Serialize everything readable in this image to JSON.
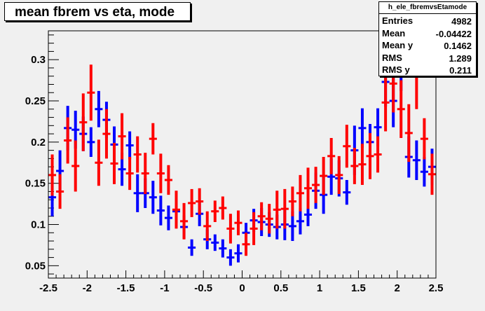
{
  "title": "mean fbrem vs eta, mode",
  "stats": {
    "name": "h_ele_fbremvsEtamode",
    "rows": [
      {
        "label": "Entries",
        "value": "4982"
      },
      {
        "label": "Mean",
        "value": "-0.04422"
      },
      {
        "label": "Mean y",
        "value": "0.1462"
      },
      {
        "label": "RMS",
        "value": "1.289"
      },
      {
        "label": "RMS y",
        "value": "0.211"
      }
    ]
  },
  "colors": {
    "background": "#f0f0f0",
    "frame": "#000000",
    "series_blue": "#0000ff",
    "series_red": "#ff0000"
  },
  "chart_data": {
    "type": "scatter",
    "title": "mean fbrem vs eta, mode",
    "xlabel": "",
    "ylabel": "",
    "xlim": [
      -2.5,
      2.5
    ],
    "ylim": [
      0.035,
      0.335
    ],
    "grid": false,
    "x_ticks": [
      "-2.5",
      "-2",
      "-1.5",
      "-1",
      "-0.5",
      "0",
      "0.5",
      "1",
      "1.5",
      "2",
      "2.5"
    ],
    "y_ticks": [
      "0.05",
      "0.1",
      "0.15",
      "0.2",
      "0.25",
      "0.3"
    ],
    "x_half_width": 0.05,
    "series": [
      {
        "color": "#0000ff",
        "x": [
          -2.45,
          -2.35,
          -2.25,
          -2.15,
          -2.05,
          -1.95,
          -1.85,
          -1.75,
          -1.65,
          -1.55,
          -1.45,
          -1.35,
          -1.25,
          -1.15,
          -1.05,
          -0.95,
          -0.85,
          -0.75,
          -0.65,
          -0.55,
          -0.45,
          -0.35,
          -0.25,
          -0.15,
          -0.05,
          0.05,
          0.15,
          0.25,
          0.35,
          0.45,
          0.55,
          0.65,
          0.75,
          0.85,
          0.95,
          1.05,
          1.15,
          1.25,
          1.35,
          1.45,
          1.55,
          1.65,
          1.75,
          1.85,
          1.95,
          2.05,
          2.15,
          2.25,
          2.35,
          2.45
        ],
        "y": [
          0.133,
          0.165,
          0.217,
          0.215,
          0.21,
          0.2,
          0.24,
          0.227,
          0.197,
          0.167,
          0.196,
          0.138,
          0.138,
          0.133,
          0.117,
          0.108,
          0.116,
          0.097,
          0.072,
          0.113,
          0.082,
          0.078,
          0.071,
          0.06,
          0.065,
          0.09,
          0.105,
          0.103,
          0.1,
          0.097,
          0.1,
          0.098,
          0.104,
          0.112,
          0.141,
          0.136,
          0.158,
          0.156,
          0.139,
          0.19,
          0.217,
          0.2,
          0.218,
          0.273,
          0.25,
          0.292,
          0.182,
          0.178,
          0.164,
          0.17
        ],
        "err": [
          0.023,
          0.025,
          0.027,
          0.023,
          0.021,
          0.018,
          0.022,
          0.022,
          0.022,
          0.02,
          0.017,
          0.023,
          0.018,
          0.02,
          0.018,
          0.015,
          0.014,
          0.014,
          0.01,
          0.015,
          0.012,
          0.01,
          0.011,
          0.01,
          0.011,
          0.012,
          0.014,
          0.017,
          0.015,
          0.015,
          0.019,
          0.018,
          0.016,
          0.014,
          0.022,
          0.023,
          0.022,
          0.022,
          0.015,
          0.03,
          0.024,
          0.022,
          0.023,
          0.03,
          0.032,
          0.03,
          0.025,
          0.024,
          0.018,
          0.022
        ]
      },
      {
        "color": "#ff0000",
        "x": [
          -2.45,
          -2.35,
          -2.25,
          -2.15,
          -2.05,
          -1.95,
          -1.85,
          -1.75,
          -1.65,
          -1.55,
          -1.45,
          -1.35,
          -1.25,
          -1.15,
          -1.05,
          -0.95,
          -0.85,
          -0.75,
          -0.65,
          -0.55,
          -0.45,
          -0.35,
          -0.25,
          -0.15,
          -0.05,
          0.05,
          0.15,
          0.25,
          0.35,
          0.45,
          0.55,
          0.65,
          0.75,
          0.85,
          0.95,
          1.05,
          1.15,
          1.25,
          1.35,
          1.45,
          1.55,
          1.65,
          1.75,
          1.85,
          1.95,
          2.05,
          2.15,
          2.25,
          2.35,
          2.45
        ],
        "y": [
          0.16,
          0.14,
          0.202,
          0.171,
          0.224,
          0.26,
          0.175,
          0.21,
          0.174,
          0.207,
          0.162,
          0.185,
          0.162,
          0.204,
          0.162,
          0.154,
          0.118,
          0.104,
          0.126,
          0.128,
          0.098,
          0.116,
          0.12,
          0.095,
          0.102,
          0.076,
          0.095,
          0.11,
          0.107,
          0.118,
          0.119,
          0.128,
          0.138,
          0.144,
          0.148,
          0.159,
          0.183,
          0.16,
          0.195,
          0.171,
          0.173,
          0.183,
          0.185,
          0.248,
          0.271,
          0.24,
          0.211,
          0.28,
          0.204,
          0.161
        ],
        "err": [
          0.025,
          0.021,
          0.028,
          0.031,
          0.035,
          0.034,
          0.028,
          0.03,
          0.025,
          0.028,
          0.02,
          0.022,
          0.025,
          0.019,
          0.024,
          0.018,
          0.023,
          0.022,
          0.017,
          0.016,
          0.018,
          0.013,
          0.014,
          0.018,
          0.015,
          0.014,
          0.02,
          0.017,
          0.018,
          0.023,
          0.024,
          0.018,
          0.022,
          0.025,
          0.022,
          0.023,
          0.022,
          0.023,
          0.026,
          0.022,
          0.025,
          0.028,
          0.022,
          0.035,
          0.035,
          0.035,
          0.035,
          0.04,
          0.025,
          0.025
        ]
      }
    ]
  }
}
